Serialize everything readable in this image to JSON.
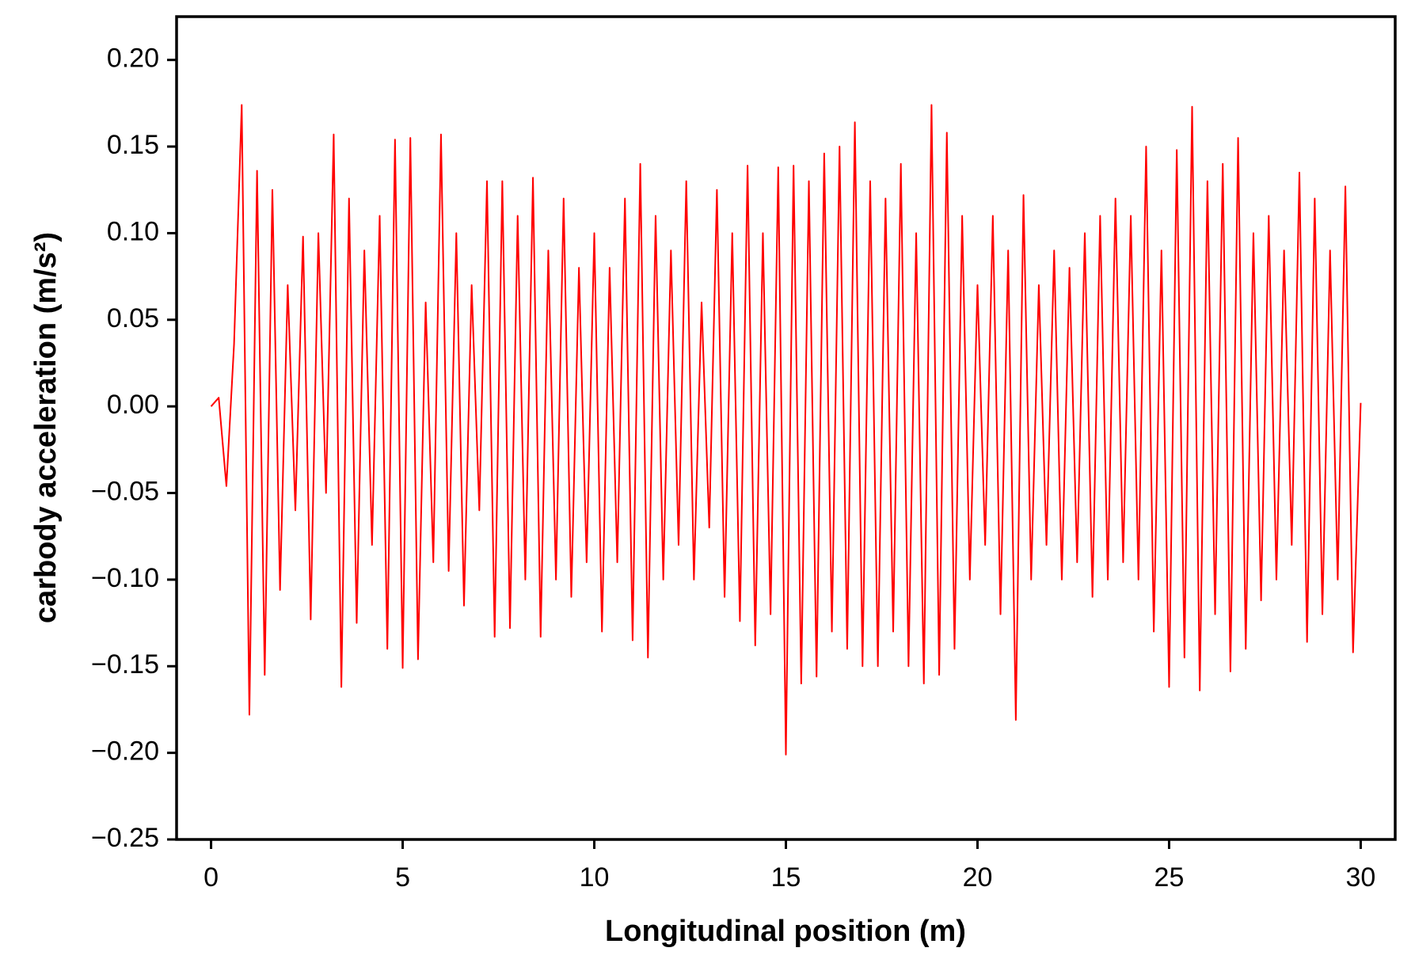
{
  "chart_data": {
    "type": "line",
    "xlabel": "Longitudinal position (m)",
    "ylabel": "carbody acceleration (m/s²)",
    "x": [
      0,
      0.2,
      0.4,
      0.6,
      0.8,
      1,
      1.2,
      1.4,
      1.6,
      1.8,
      2,
      2.2,
      2.4,
      2.6,
      2.8,
      3,
      3.2,
      3.4,
      3.6,
      3.8,
      4,
      4.2,
      4.4,
      4.6,
      4.8,
      5,
      5.2,
      5.4,
      5.6,
      5.8,
      6,
      6.2,
      6.4,
      6.6,
      6.8,
      7,
      7.2,
      7.4,
      7.6,
      7.8,
      8,
      8.2,
      8.4,
      8.6,
      8.8,
      9,
      9.2,
      9.4,
      9.6,
      9.8,
      10,
      10.2,
      10.4,
      10.6,
      10.8,
      11,
      11.2,
      11.4,
      11.6,
      11.8,
      12,
      12.2,
      12.4,
      12.6,
      12.8,
      13,
      13.2,
      13.4,
      13.6,
      13.8,
      14,
      14.2,
      14.4,
      14.6,
      14.8,
      15,
      15.2,
      15.4,
      15.6,
      15.8,
      16,
      16.2,
      16.4,
      16.6,
      16.8,
      17,
      17.2,
      17.4,
      17.6,
      17.8,
      18,
      18.2,
      18.4,
      18.6,
      18.8,
      19,
      19.2,
      19.4,
      19.6,
      19.8,
      20,
      20.2,
      20.4,
      20.6,
      20.8,
      21,
      21.2,
      21.4,
      21.6,
      21.8,
      22,
      22.2,
      22.4,
      22.6,
      22.8,
      23,
      23.2,
      23.4,
      23.6,
      23.8,
      24,
      24.2,
      24.4,
      24.6,
      24.8,
      25,
      25.2,
      25.4,
      25.6,
      25.8,
      26,
      26.2,
      26.4,
      26.6,
      26.8,
      27,
      27.2,
      27.4,
      27.6,
      27.8,
      28,
      28.2,
      28.4,
      28.6,
      28.8,
      29,
      29.2,
      29.4,
      29.6,
      29.8,
      30
    ],
    "series": [
      {
        "color": "#ff0000",
        "values": [
          0,
          0.005,
          -0.046,
          0.036,
          0.174,
          -0.178,
          0.136,
          -0.155,
          0.125,
          -0.106,
          0.07,
          -0.06,
          0.098,
          -0.123,
          0.1,
          -0.05,
          0.157,
          -0.162,
          0.12,
          -0.125,
          0.09,
          -0.08,
          0.11,
          -0.14,
          0.154,
          -0.151,
          0.155,
          -0.146,
          0.06,
          -0.09,
          0.157,
          -0.095,
          0.1,
          -0.115,
          0.07,
          -0.06,
          0.13,
          -0.133,
          0.13,
          -0.128,
          0.11,
          -0.1,
          0.132,
          -0.133,
          0.09,
          -0.1,
          0.12,
          -0.11,
          0.08,
          -0.09,
          0.1,
          -0.13,
          0.08,
          -0.09,
          0.12,
          -0.135,
          0.14,
          -0.145,
          0.11,
          -0.1,
          0.09,
          -0.08,
          0.13,
          -0.1,
          0.06,
          -0.07,
          0.125,
          -0.11,
          0.1,
          -0.124,
          0.139,
          -0.138,
          0.1,
          -0.12,
          0.138,
          -0.201,
          0.139,
          -0.16,
          0.13,
          -0.156,
          0.146,
          -0.13,
          0.15,
          -0.14,
          0.164,
          -0.15,
          0.13,
          -0.15,
          0.12,
          -0.13,
          0.14,
          -0.15,
          0.1,
          -0.16,
          0.174,
          -0.155,
          0.158,
          -0.14,
          0.11,
          -0.1,
          0.07,
          -0.08,
          0.11,
          -0.12,
          0.09,
          -0.181,
          0.122,
          -0.1,
          0.07,
          -0.08,
          0.09,
          -0.1,
          0.08,
          -0.09,
          0.1,
          -0.11,
          0.11,
          -0.1,
          0.12,
          -0.09,
          0.11,
          -0.1,
          0.15,
          -0.13,
          0.09,
          -0.162,
          0.148,
          -0.145,
          0.173,
          -0.164,
          0.13,
          -0.12,
          0.14,
          -0.153,
          0.155,
          -0.14,
          0.1,
          -0.112,
          0.11,
          -0.1,
          0.09,
          -0.08,
          0.135,
          -0.136,
          0.12,
          -0.12,
          0.09,
          -0.1,
          0.127,
          -0.142,
          0.002
        ]
      }
    ],
    "xlim": [
      -0.9,
      30.9
    ],
    "ylim": [
      -0.25,
      0.225
    ],
    "xticks": [
      0,
      5,
      10,
      15,
      20,
      25,
      30
    ],
    "yticks": [
      {
        "value": -0.25,
        "label": "−0.25"
      },
      {
        "value": -0.2,
        "label": "−0.20"
      },
      {
        "value": -0.15,
        "label": "−0.15"
      },
      {
        "value": -0.1,
        "label": "−0.10"
      },
      {
        "value": -0.05,
        "label": "−0.05"
      },
      {
        "value": 0,
        "label": "0.00"
      },
      {
        "value": 0.05,
        "label": "0.05"
      },
      {
        "value": 0.1,
        "label": "0.10"
      },
      {
        "value": 0.15,
        "label": "0.15"
      },
      {
        "value": 0.2,
        "label": "0.20"
      }
    ],
    "grid": false
  }
}
